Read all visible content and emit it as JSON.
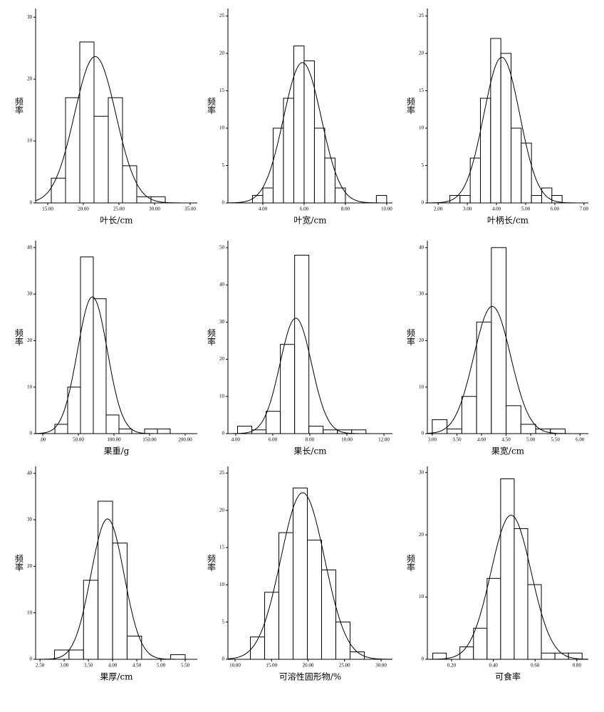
{
  "chart_data": [
    {
      "type": "histogram",
      "xlabel": "叶长/cm",
      "ylabel": "频率",
      "bins": [
        15.5,
        17.5,
        19.5,
        21.5,
        23.5,
        25.5,
        27.5,
        29.5,
        31.5
      ],
      "counts": [
        4,
        17,
        26,
        14,
        17,
        6,
        1,
        1
      ],
      "xlim": [
        13.3,
        36
      ],
      "ylim": [
        0,
        31.4
      ],
      "xticks": [
        {
          "value": 15,
          "label": "15.00"
        },
        {
          "value": 20,
          "label": "20.00"
        },
        {
          "value": 25,
          "label": "25.00"
        },
        {
          "value": 30,
          "label": "30.00"
        },
        {
          "value": 35,
          "label": "35.00"
        }
      ],
      "yticks": [
        0,
        10,
        20,
        30
      ]
    },
    {
      "type": "histogram",
      "xlabel": "叶宽/cm",
      "ylabel": "频率",
      "bins": [
        3.5,
        4.0,
        4.5,
        5.0,
        5.5,
        6.0,
        6.5,
        7.0,
        7.5,
        8.0,
        8.5,
        9.0,
        9.5,
        10.0
      ],
      "counts": [
        1,
        2,
        10,
        14,
        21,
        19,
        10,
        6,
        2,
        0,
        0,
        0,
        1
      ],
      "xlim": [
        2.31,
        10.28
      ],
      "ylim": [
        0,
        26
      ],
      "xticks": [
        {
          "value": 4,
          "label": "4.00"
        },
        {
          "value": 6,
          "label": "6.00"
        },
        {
          "value": 8,
          "label": "8.00"
        },
        {
          "value": 10,
          "label": "10.00"
        }
      ],
      "yticks": [
        0,
        5,
        10,
        15,
        20,
        25
      ]
    },
    {
      "type": "histogram",
      "xlabel": "叶柄长/cm",
      "ylabel": "频率",
      "bins": [
        2.4,
        2.75,
        3.1,
        3.45,
        3.8,
        4.15,
        4.5,
        4.85,
        5.2,
        5.55,
        5.9,
        6.25
      ],
      "counts": [
        1,
        1,
        6,
        14,
        22,
        20,
        10,
        8,
        1,
        2,
        1
      ],
      "xlim": [
        1.63,
        7.15
      ],
      "ylim": [
        0,
        26
      ],
      "xticks": [
        {
          "value": 2,
          "label": "2.00"
        },
        {
          "value": 3,
          "label": "3.00"
        },
        {
          "value": 4,
          "label": "4.00"
        },
        {
          "value": 5,
          "label": "5.00"
        },
        {
          "value": 6,
          "label": "6.00"
        },
        {
          "value": 7,
          "label": "7.00"
        }
      ],
      "yticks": [
        0,
        5,
        10,
        15,
        20,
        25
      ]
    },
    {
      "type": "histogram",
      "xlabel": "果重/g",
      "ylabel": "频率",
      "bins": [
        17,
        35,
        53,
        71,
        89,
        107,
        125,
        143,
        161,
        179
      ],
      "counts": [
        2,
        10,
        38,
        29,
        4,
        1,
        0,
        1,
        1
      ],
      "xlim": [
        -10,
        217
      ],
      "ylim": [
        0,
        41.5
      ],
      "xticks": [
        {
          "value": 0,
          "label": ".00"
        },
        {
          "value": 50,
          "label": "50.00"
        },
        {
          "value": 100,
          "label": "100.00"
        },
        {
          "value": 150,
          "label": "150.00"
        },
        {
          "value": 200,
          "label": "200.00"
        }
      ],
      "yticks": [
        0,
        10,
        20,
        30,
        40
      ]
    },
    {
      "type": "histogram",
      "xlabel": "果长/cm",
      "ylabel": "频率",
      "bins": [
        4.1,
        4.87,
        5.64,
        6.41,
        7.18,
        7.95,
        8.72,
        9.49,
        10.26,
        11.03
      ],
      "counts": [
        2,
        1,
        6,
        24,
        48,
        2,
        1,
        1,
        1
      ],
      "xlim": [
        3.58,
        12.46
      ],
      "ylim": [
        0,
        51.9
      ],
      "xticks": [
        {
          "value": 4,
          "label": "4.00"
        },
        {
          "value": 6,
          "label": "6.00"
        },
        {
          "value": 8,
          "label": "8.00"
        },
        {
          "value": 10,
          "label": "10.00"
        },
        {
          "value": 12,
          "label": "12.00"
        }
      ],
      "yticks": [
        0,
        10,
        20,
        30,
        40,
        50
      ]
    },
    {
      "type": "histogram",
      "xlabel": "果宽/cm",
      "ylabel": "频率",
      "bins": [
        3.0,
        3.3,
        3.6,
        3.9,
        4.2,
        4.5,
        4.8,
        5.1,
        5.4,
        5.7
      ],
      "counts": [
        3,
        1,
        8,
        24,
        40,
        6,
        2,
        1,
        1
      ],
      "xlim": [
        2.9,
        6.17
      ],
      "ylim": [
        0,
        41.5
      ],
      "xticks": [
        {
          "value": 3,
          "label": "3.00"
        },
        {
          "value": 3.5,
          "label": "3.50"
        },
        {
          "value": 4,
          "label": "4.00"
        },
        {
          "value": 4.5,
          "label": "4.50"
        },
        {
          "value": 5,
          "label": "5.00"
        },
        {
          "value": 5.5,
          "label": "5.50"
        },
        {
          "value": 6,
          "label": "6.00"
        }
      ],
      "yticks": [
        0,
        10,
        20,
        30,
        40
      ]
    },
    {
      "type": "histogram",
      "xlabel": "果厚/cm",
      "ylabel": "频率",
      "bins": [
        2.8,
        3.1,
        3.4,
        3.7,
        4.0,
        4.3,
        4.6,
        4.9,
        5.2,
        5.5
      ],
      "counts": [
        2,
        2,
        17,
        34,
        25,
        5,
        0,
        0,
        1
      ],
      "xlim": [
        2.41,
        5.75
      ],
      "ylim": [
        0,
        41.5
      ],
      "xticks": [
        {
          "value": 2.5,
          "label": "2.50"
        },
        {
          "value": 3,
          "label": "3.00"
        },
        {
          "value": 3.5,
          "label": "3.50"
        },
        {
          "value": 4,
          "label": "4.00"
        },
        {
          "value": 4.5,
          "label": "4.50"
        },
        {
          "value": 5,
          "label": "5.00"
        },
        {
          "value": 5.5,
          "label": "5.50"
        }
      ],
      "yticks": [
        0,
        10,
        20,
        30,
        40
      ]
    },
    {
      "type": "histogram",
      "xlabel": "可溶性固形物/%",
      "ylabel": "频率",
      "bins": [
        12.1,
        14.05,
        16,
        17.95,
        19.9,
        21.85,
        23.8,
        25.75,
        27.7
      ],
      "counts": [
        3,
        9,
        17,
        23,
        16,
        12,
        5,
        1
      ],
      "xlim": [
        9.02,
        31.56
      ],
      "ylim": [
        0,
        25.9
      ],
      "xticks": [
        {
          "value": 10,
          "label": "10.00"
        },
        {
          "value": 15,
          "label": "15.00"
        },
        {
          "value": 20,
          "label": "20.00"
        },
        {
          "value": 25,
          "label": "25.00"
        },
        {
          "value": 30,
          "label": "30.00"
        }
      ],
      "yticks": [
        0,
        5,
        10,
        15,
        20,
        25
      ]
    },
    {
      "type": "histogram",
      "xlabel": "可食率",
      "ylabel": "频率",
      "bins": [
        0.11,
        0.175,
        0.24,
        0.305,
        0.37,
        0.435,
        0.5,
        0.565,
        0.63,
        0.695,
        0.76,
        0.825
      ],
      "counts": [
        1,
        0,
        2,
        5,
        13,
        29,
        21,
        12,
        1,
        1,
        1
      ],
      "xlim": [
        0.084,
        0.855
      ],
      "ylim": [
        0,
        31
      ],
      "xticks": [
        {
          "value": 0.2,
          "label": "0.20"
        },
        {
          "value": 0.4,
          "label": "0.40"
        },
        {
          "value": 0.6,
          "label": "0.60"
        },
        {
          "value": 0.8,
          "label": "0.80"
        }
      ],
      "yticks": [
        0,
        10,
        20,
        30
      ]
    }
  ]
}
